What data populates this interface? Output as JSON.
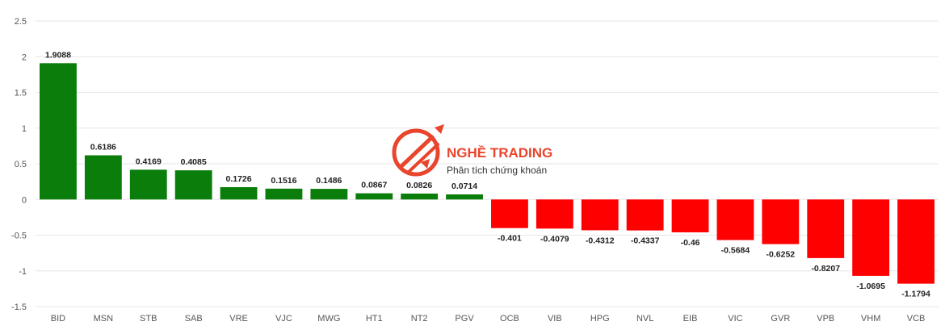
{
  "watermark": {
    "title": "NGHỀ TRADING",
    "subtitle": "Phân tích chứng khoán"
  },
  "colors": {
    "positive": "#0a7d0a",
    "negative": "#ff0000"
  },
  "chart_data": {
    "type": "bar",
    "title": "",
    "xlabel": "",
    "ylabel": "",
    "ylim": [
      -1.5,
      2.5
    ],
    "yticks": [
      2.5,
      2,
      1.5,
      1,
      0.5,
      0,
      -0.5,
      -1,
      -1.5
    ],
    "grid": true,
    "categories": [
      "BID",
      "MSN",
      "STB",
      "SAB",
      "VRE",
      "VJC",
      "MWG",
      "HT1",
      "NT2",
      "PGV",
      "OCB",
      "VIB",
      "HPG",
      "NVL",
      "EIB",
      "VIC",
      "GVR",
      "VPB",
      "VHM",
      "VCB"
    ],
    "values": [
      1.9088,
      0.6186,
      0.4169,
      0.4085,
      0.1726,
      0.1516,
      0.1486,
      0.0867,
      0.0826,
      0.0714,
      -0.401,
      -0.4079,
      -0.4312,
      -0.4337,
      -0.46,
      -0.5684,
      -0.6252,
      -0.8207,
      -1.0695,
      -1.1794
    ]
  }
}
